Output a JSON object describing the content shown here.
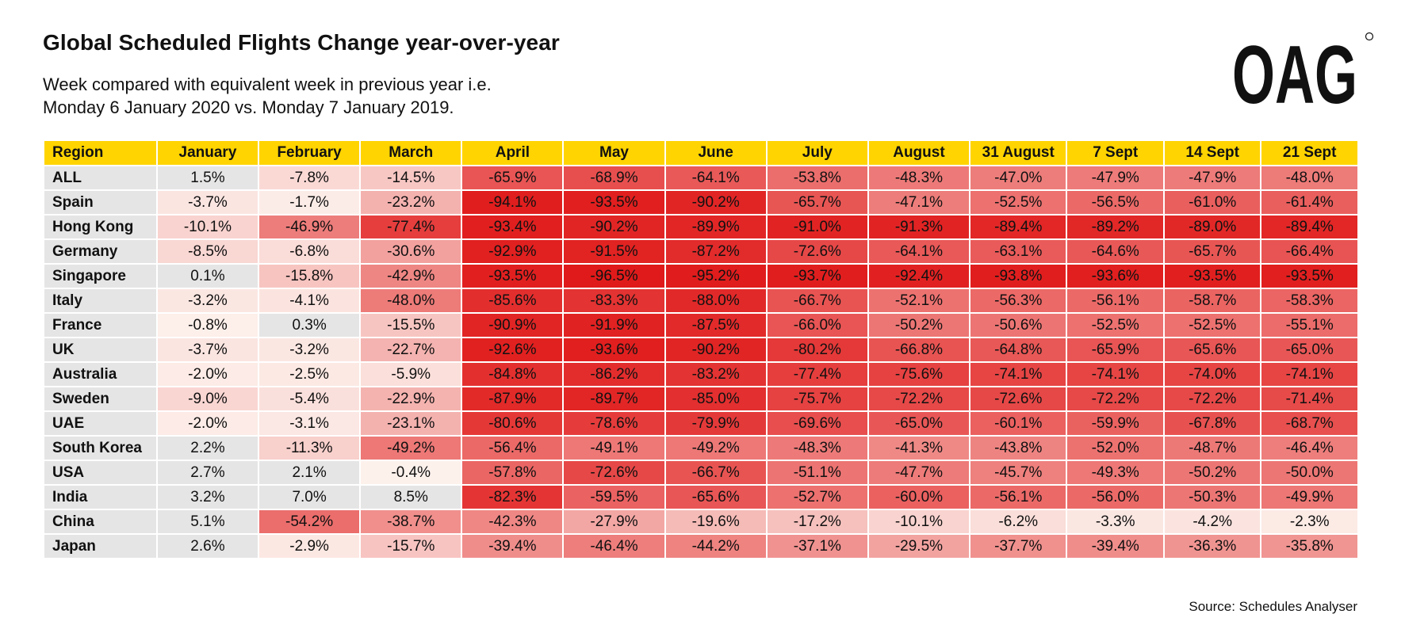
{
  "title": "Global Scheduled Flights Change year-over-year",
  "subtitle_lines": [
    "Week compared with equivalent week in previous year i.e.",
    "Monday 6 January 2020 vs. Monday 7 January 2019."
  ],
  "logo_text": "OAG",
  "source": "Source: Schedules Analyser",
  "colors": {
    "header_bg": "#ffd400",
    "region_bg": "#e5e5e5",
    "neutral_positive": "#e5e5e5",
    "scale_light": "#fdf3ee",
    "scale_dark": "#e01a1a"
  },
  "chart_data": {
    "type": "heatmap",
    "row_header": "Region",
    "columns": [
      "January",
      "February",
      "March",
      "April",
      "May",
      "June",
      "July",
      "August",
      "31 August",
      "7 Sept",
      "14 Sept",
      "21 Sept"
    ],
    "rows": [
      {
        "region": "ALL",
        "values": [
          "1.5%",
          "-7.8%",
          "-14.5%",
          "-65.9%",
          "-68.9%",
          "-64.1%",
          "-53.8%",
          "-48.3%",
          "-47.0%",
          "-47.9%",
          "-47.9%",
          "-48.0%"
        ]
      },
      {
        "region": "Spain",
        "values": [
          "-3.7%",
          "-1.7%",
          "-23.2%",
          "-94.1%",
          "-93.5%",
          "-90.2%",
          "-65.7%",
          "-47.1%",
          "-52.5%",
          "-56.5%",
          "-61.0%",
          "-61.4%"
        ]
      },
      {
        "region": "Hong Kong",
        "values": [
          "-10.1%",
          "-46.9%",
          "-77.4%",
          "-93.4%",
          "-90.2%",
          "-89.9%",
          "-91.0%",
          "-91.3%",
          "-89.4%",
          "-89.2%",
          "-89.0%",
          "-89.4%"
        ]
      },
      {
        "region": "Germany",
        "values": [
          "-8.5%",
          "-6.8%",
          "-30.6%",
          "-92.9%",
          "-91.5%",
          "-87.2%",
          "-72.6%",
          "-64.1%",
          "-63.1%",
          "-64.6%",
          "-65.7%",
          "-66.4%"
        ]
      },
      {
        "region": "Singapore",
        "values": [
          "0.1%",
          "-15.8%",
          "-42.9%",
          "-93.5%",
          "-96.5%",
          "-95.2%",
          "-93.7%",
          "-92.4%",
          "-93.8%",
          "-93.6%",
          "-93.5%",
          "-93.5%"
        ]
      },
      {
        "region": "Italy",
        "values": [
          "-3.2%",
          "-4.1%",
          "-48.0%",
          "-85.6%",
          "-83.3%",
          "-88.0%",
          "-66.7%",
          "-52.1%",
          "-56.3%",
          "-56.1%",
          "-58.7%",
          "-58.3%"
        ]
      },
      {
        "region": "France",
        "values": [
          "-0.8%",
          "0.3%",
          "-15.5%",
          "-90.9%",
          "-91.9%",
          "-87.5%",
          "-66.0%",
          "-50.2%",
          "-50.6%",
          "-52.5%",
          "-52.5%",
          "-55.1%"
        ]
      },
      {
        "region": "UK",
        "values": [
          "-3.7%",
          "-3.2%",
          "-22.7%",
          "-92.6%",
          "-93.6%",
          "-90.2%",
          "-80.2%",
          "-66.8%",
          "-64.8%",
          "-65.9%",
          "-65.6%",
          "-65.0%"
        ]
      },
      {
        "region": "Australia",
        "values": [
          "-2.0%",
          "-2.5%",
          "-5.9%",
          "-84.8%",
          "-86.2%",
          "-83.2%",
          "-77.4%",
          "-75.6%",
          "-74.1%",
          "-74.1%",
          "-74.0%",
          "-74.1%"
        ]
      },
      {
        "region": "Sweden",
        "values": [
          "-9.0%",
          "-5.4%",
          "-22.9%",
          "-87.9%",
          "-89.7%",
          "-85.0%",
          "-75.7%",
          "-72.2%",
          "-72.6%",
          "-72.2%",
          "-72.2%",
          "-71.4%"
        ]
      },
      {
        "region": "UAE",
        "values": [
          "-2.0%",
          "-3.1%",
          "-23.1%",
          "-80.6%",
          "-78.6%",
          "-79.9%",
          "-69.6%",
          "-65.0%",
          "-60.1%",
          "-59.9%",
          "-67.8%",
          "-68.7%"
        ]
      },
      {
        "region": "South Korea",
        "values": [
          "2.2%",
          "-11.3%",
          "-49.2%",
          "-56.4%",
          "-49.1%",
          "-49.2%",
          "-48.3%",
          "-41.3%",
          "-43.8%",
          "-52.0%",
          "-48.7%",
          "-46.4%"
        ]
      },
      {
        "region": "USA",
        "values": [
          "2.7%",
          "2.1%",
          "-0.4%",
          "-57.8%",
          "-72.6%",
          "-66.7%",
          "-51.1%",
          "-47.7%",
          "-45.7%",
          "-49.3%",
          "-50.2%",
          "-50.0%"
        ]
      },
      {
        "region": "India",
        "values": [
          "3.2%",
          "7.0%",
          "8.5%",
          "-82.3%",
          "-59.5%",
          "-65.6%",
          "-52.7%",
          "-60.0%",
          "-56.1%",
          "-56.0%",
          "-50.3%",
          "-49.9%"
        ]
      },
      {
        "region": "China",
        "values": [
          "5.1%",
          "-54.2%",
          "-38.7%",
          "-42.3%",
          "-27.9%",
          "-19.6%",
          "-17.2%",
          "-10.1%",
          "-6.2%",
          "-3.3%",
          "-4.2%",
          "-2.3%"
        ]
      },
      {
        "region": "Japan",
        "values": [
          "2.6%",
          "-2.9%",
          "-15.7%",
          "-39.4%",
          "-46.4%",
          "-44.2%",
          "-37.1%",
          "-29.5%",
          "-37.7%",
          "-39.4%",
          "-36.3%",
          "-35.8%"
        ]
      }
    ]
  }
}
